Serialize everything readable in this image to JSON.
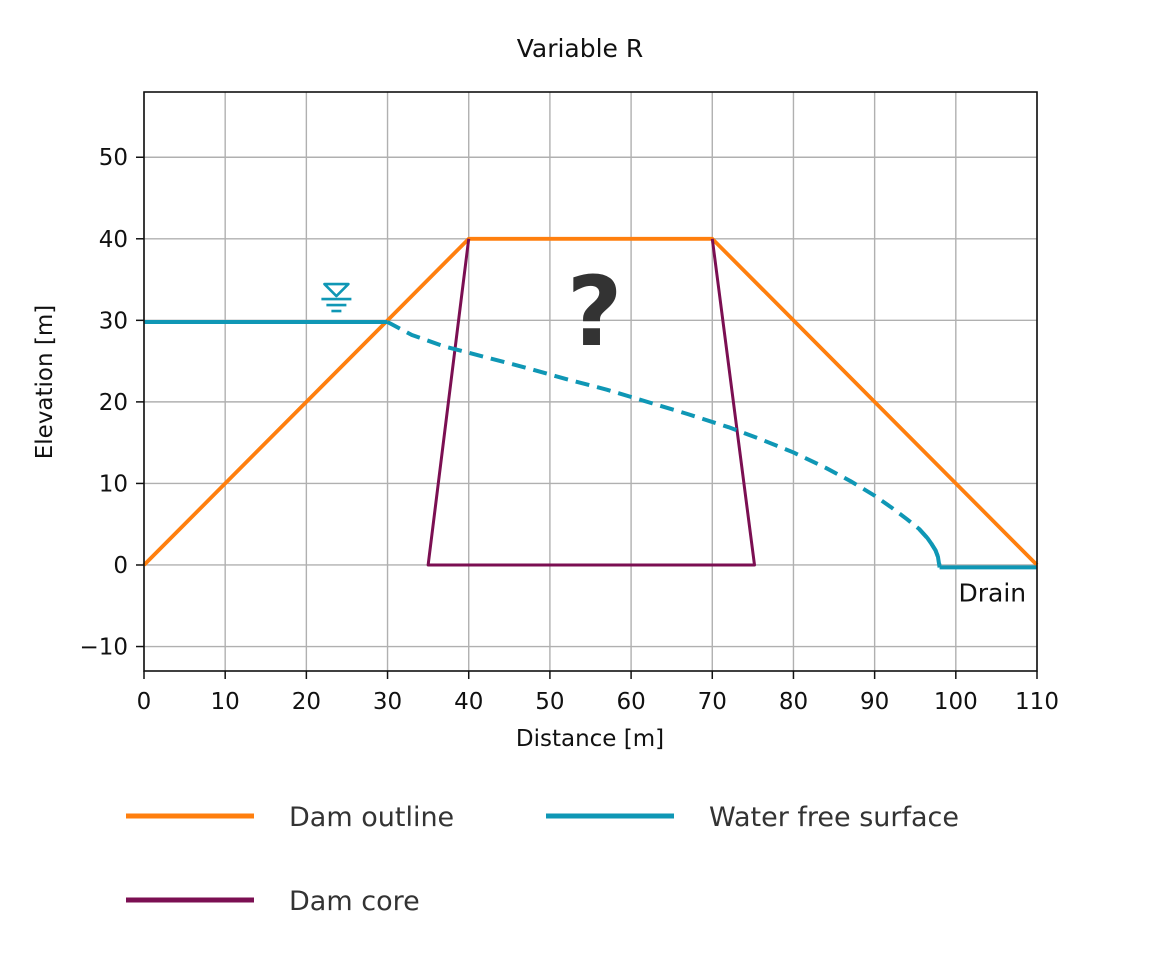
{
  "chart_data": {
    "type": "line",
    "title": "Variable R",
    "xlabel": "Distance [m]",
    "ylabel": "Elevation [m]",
    "xlim": [
      0,
      110
    ],
    "ylim": [
      -13,
      58
    ],
    "xticks": [
      0,
      10,
      20,
      30,
      40,
      50,
      60,
      70,
      80,
      90,
      100,
      110
    ],
    "yticks": [
      -10,
      0,
      10,
      20,
      30,
      40,
      50
    ],
    "xtick_labels": [
      "0",
      "10",
      "20",
      "30",
      "40",
      "50",
      "60",
      "70",
      "80",
      "90",
      "100",
      "110"
    ],
    "ytick_labels": [
      "−10",
      "0",
      "10",
      "20",
      "30",
      "40",
      "50"
    ],
    "grid": true,
    "legend_placement": "below",
    "series": [
      {
        "name": "Dam outline",
        "color": "#ff7f0e",
        "style": "solid",
        "x": [
          0,
          40,
          70,
          110
        ],
        "y": [
          0,
          40,
          40,
          0
        ]
      },
      {
        "name": "Dam core",
        "color": "#7b0f52",
        "style": "solid",
        "x": [
          40,
          35,
          75.2,
          70
        ],
        "y": [
          40,
          0,
          0,
          40
        ]
      },
      {
        "name": "Water free surface",
        "color": "#0f97b5",
        "style": "solid",
        "segments": [
          {
            "style": "solid",
            "x": [
              0,
              30
            ],
            "y": [
              29.8,
              29.8
            ]
          },
          {
            "style": "dashed",
            "x": [
              30,
              33,
              37,
              42,
              47,
              52,
              57,
              62,
              67,
              72,
              76,
              80,
              84,
              87,
              90,
              92,
              94,
              95.5,
              96.5,
              97,
              97.5,
              97.8,
              98
            ],
            "y": [
              29.8,
              28.2,
              26.8,
              25.5,
              24.2,
              22.8,
              21.5,
              20.0,
              18.5,
              16.9,
              15.4,
              13.8,
              11.9,
              10.3,
              8.5,
              7.1,
              5.6,
              4.4,
              3.3,
              2.6,
              1.8,
              1.0,
              0.0
            ]
          },
          {
            "style": "solid",
            "x": [
              95.5,
              96.5,
              97,
              97.5,
              97.8,
              98
            ],
            "y": [
              4.4,
              3.3,
              2.6,
              1.8,
              1.0,
              -0.3
            ]
          },
          {
            "style": "solid",
            "x": [
              98,
              110
            ],
            "y": [
              -0.3,
              -0.3
            ]
          }
        ]
      }
    ],
    "annotations": [
      {
        "text": "Drain",
        "x": 104.5,
        "y": -4.5
      },
      {
        "text": "?",
        "x": 55.5,
        "y": 27
      }
    ],
    "water_level_symbol": {
      "icon": "water-level-icon",
      "x": 23.7,
      "y": 32
    }
  }
}
